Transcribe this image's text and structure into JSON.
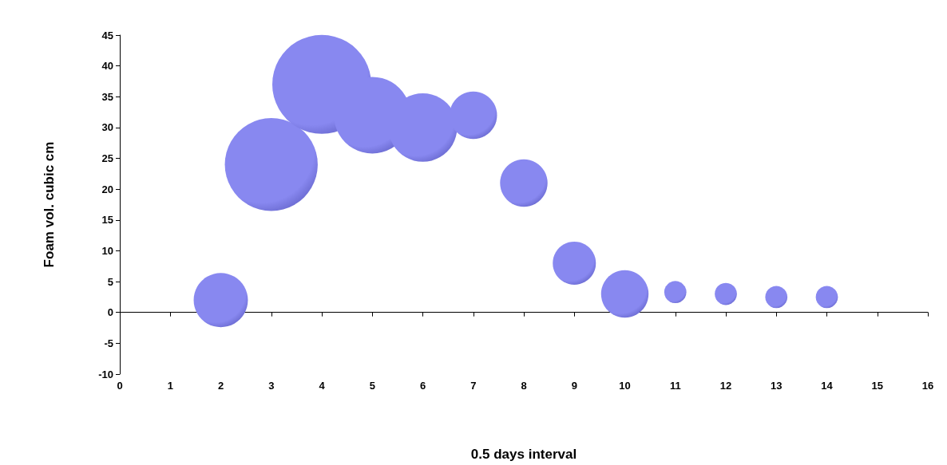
{
  "chart_data": {
    "type": "bubble",
    "xlabel": "0.5 days interval",
    "ylabel": "Foam vol. cubic cm",
    "x": [
      2,
      3,
      4,
      5,
      6,
      7,
      8,
      9,
      10,
      11,
      12,
      13,
      14
    ],
    "values": [
      2,
      24,
      37,
      32,
      30,
      32,
      21,
      8,
      3,
      3.3,
      3,
      2.5,
      2.5
    ],
    "sizes": [
      0.3,
      0.88,
      1,
      0.6,
      0.48,
      0.23,
      0.23,
      0.19,
      0.23,
      0.05,
      0.05,
      0.05,
      0.05
    ],
    "color": "#8888f0",
    "xlim": [
      0,
      16
    ],
    "xticks": [
      0,
      1,
      2,
      3,
      4,
      5,
      6,
      7,
      8,
      9,
      10,
      11,
      12,
      13,
      14,
      15,
      16
    ],
    "ylim": [
      -10,
      45
    ],
    "yticks": [
      -10,
      -5,
      0,
      5,
      10,
      15,
      20,
      25,
      30,
      35,
      40,
      45
    ]
  }
}
